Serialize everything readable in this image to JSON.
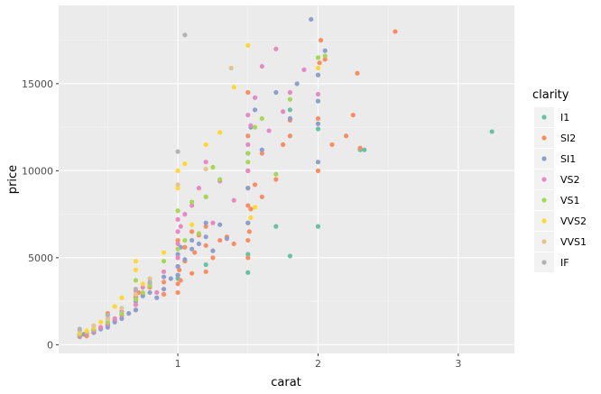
{
  "chart_data": {
    "type": "scatter",
    "title": "",
    "xlabel": "carat",
    "ylabel": "price",
    "xlim": [
      0.15,
      3.4
    ],
    "ylim": [
      -500,
      19500
    ],
    "x_ticks": [
      1,
      2,
      3
    ],
    "y_ticks": [
      0,
      5000,
      10000,
      15000
    ],
    "x_tick_labels": [
      "1",
      "2",
      "3"
    ],
    "y_tick_labels": [
      "0",
      "5000",
      "10000",
      "15000"
    ],
    "grid": true,
    "legend": {
      "title": "clarity",
      "position": "right"
    },
    "series": [
      {
        "name": "I1",
        "color": "#66C2A5",
        "x": [
          0.7,
          1.0,
          1.2,
          1.5,
          1.5,
          1.7,
          1.8,
          1.8,
          2.0,
          2.0,
          2.3,
          2.33,
          3.24
        ],
        "y": [
          2800,
          3800,
          4600,
          4150,
          5200,
          6800,
          5100,
          13500,
          6800,
          12400,
          11200,
          11200,
          12250
        ]
      },
      {
        "name": "SI2",
        "color": "#FC8D62",
        "x": [
          0.3,
          0.3,
          0.35,
          0.4,
          0.4,
          0.45,
          0.5,
          0.5,
          0.5,
          0.55,
          0.6,
          0.7,
          0.7,
          0.7,
          0.72,
          0.75,
          0.8,
          0.9,
          0.9,
          1.0,
          1.0,
          1.0,
          1.0,
          1.0,
          1.0,
          1.01,
          1.02,
          1.05,
          1.05,
          1.1,
          1.1,
          1.12,
          1.15,
          1.2,
          1.2,
          1.2,
          1.25,
          1.3,
          1.35,
          1.4,
          1.5,
          1.5,
          1.5,
          1.5,
          1.5,
          1.5,
          1.5,
          1.5,
          1.51,
          1.52,
          1.55,
          1.6,
          1.6,
          1.7,
          1.75,
          1.8,
          1.8,
          2.0,
          2.0,
          2.0,
          2.01,
          2.02,
          2.05,
          2.1,
          2.2,
          2.25,
          2.28,
          2.3,
          2.55
        ],
        "y": [
          450,
          600,
          500,
          700,
          900,
          1000,
          1200,
          1500,
          1800,
          1400,
          1700,
          2000,
          2300,
          2700,
          3000,
          2900,
          3300,
          2900,
          3600,
          3000,
          3500,
          4000,
          4500,
          5000,
          6000,
          4300,
          3700,
          4800,
          5600,
          4100,
          6500,
          5300,
          6300,
          4200,
          5700,
          6800,
          5000,
          6000,
          6200,
          5800,
          5000,
          6000,
          7000,
          8000,
          9000,
          10000,
          12000,
          14500,
          6500,
          7800,
          9200,
          8500,
          11000,
          9500,
          11500,
          12000,
          12900,
          10000,
          13000,
          15500,
          16200,
          17500,
          16400,
          11500,
          12000,
          13200,
          15600,
          11300,
          18000
        ]
      },
      {
        "name": "SI1",
        "color": "#8DA0CB",
        "x": [
          0.3,
          0.33,
          0.4,
          0.4,
          0.45,
          0.5,
          0.5,
          0.55,
          0.6,
          0.65,
          0.7,
          0.7,
          0.75,
          0.8,
          0.85,
          0.9,
          0.9,
          0.95,
          1.0,
          1.0,
          1.0,
          1.02,
          1.05,
          1.1,
          1.1,
          1.15,
          1.2,
          1.2,
          1.25,
          1.3,
          1.35,
          1.5,
          1.5,
          1.5,
          1.52,
          1.55,
          1.6,
          1.7,
          1.8,
          1.85,
          1.95,
          2.0,
          2.0,
          2.0,
          2.0,
          2.05
        ],
        "y": [
          500,
          600,
          700,
          800,
          900,
          1000,
          1100,
          1300,
          1500,
          1800,
          2000,
          2500,
          2800,
          3000,
          2700,
          3200,
          3900,
          3800,
          4000,
          4500,
          5200,
          5600,
          4900,
          5500,
          6000,
          5800,
          6200,
          7000,
          5400,
          6900,
          6100,
          7000,
          9000,
          11000,
          12500,
          13500,
          11200,
          14500,
          13000,
          15000,
          18700,
          10500,
          12700,
          14000,
          15500,
          16900
        ]
      },
      {
        "name": "VS2",
        "color": "#E78AC3",
        "x": [
          0.3,
          0.35,
          0.4,
          0.45,
          0.5,
          0.55,
          0.6,
          0.7,
          0.7,
          0.75,
          0.8,
          0.85,
          0.9,
          1.0,
          1.0,
          1.0,
          1.0,
          1.02,
          1.05,
          1.1,
          1.15,
          1.2,
          1.2,
          1.25,
          1.3,
          1.4,
          1.5,
          1.5,
          1.5,
          1.52,
          1.55,
          1.6,
          1.65,
          1.7,
          1.75,
          1.8,
          1.9,
          2.0
        ],
        "y": [
          550,
          650,
          800,
          1000,
          1200,
          1500,
          1900,
          2300,
          3100,
          3300,
          3500,
          3000,
          4200,
          5000,
          5800,
          6500,
          7200,
          6800,
          7500,
          8000,
          9000,
          10500,
          8500,
          7000,
          9400,
          8300,
          10000,
          11500,
          13200,
          12600,
          14200,
          16000,
          12300,
          17000,
          13400,
          14500,
          15800,
          14400
        ]
      },
      {
        "name": "VS1",
        "color": "#A6D854",
        "x": [
          0.3,
          0.35,
          0.4,
          0.5,
          0.6,
          0.7,
          0.7,
          0.75,
          0.8,
          0.9,
          1.0,
          1.0,
          1.05,
          1.1,
          1.15,
          1.2,
          1.25,
          1.3,
          1.5,
          1.5,
          1.55,
          1.6,
          1.7,
          1.8,
          2.0,
          2.05
        ],
        "y": [
          600,
          750,
          900,
          1300,
          1800,
          2600,
          3700,
          3000,
          3400,
          4800,
          5500,
          7700,
          6000,
          8200,
          6400,
          8500,
          10200,
          9500,
          10500,
          11000,
          12500,
          13000,
          9800,
          14100,
          16500,
          16600
        ]
      },
      {
        "name": "VVS2",
        "color": "#FFD92F",
        "x": [
          0.3,
          0.35,
          0.4,
          0.45,
          0.5,
          0.55,
          0.6,
          0.7,
          0.7,
          0.75,
          0.9,
          1.0,
          1.0,
          1.05,
          1.1,
          1.2,
          1.3,
          1.4,
          1.5,
          1.52,
          1.55,
          2.0
        ],
        "y": [
          700,
          800,
          1000,
          1300,
          1700,
          2200,
          2700,
          4300,
          4800,
          3500,
          5300,
          9000,
          10000,
          10400,
          6900,
          11500,
          12200,
          14800,
          17200,
          7300,
          7900,
          15900
        ]
      },
      {
        "name": "VVS1",
        "color": "#E5C494",
        "x": [
          0.3,
          0.4,
          0.5,
          0.6,
          0.7,
          0.8,
          1.0,
          1.2,
          1.38
        ],
        "y": [
          800,
          1100,
          1500,
          2100,
          2900,
          3800,
          9200,
          10100,
          15900
        ]
      },
      {
        "name": "IF",
        "color": "#B3B3B3",
        "x": [
          0.3,
          0.5,
          0.7,
          0.8,
          1.0,
          1.05
        ],
        "y": [
          900,
          1700,
          3200,
          3600,
          11100,
          17800
        ]
      }
    ]
  }
}
